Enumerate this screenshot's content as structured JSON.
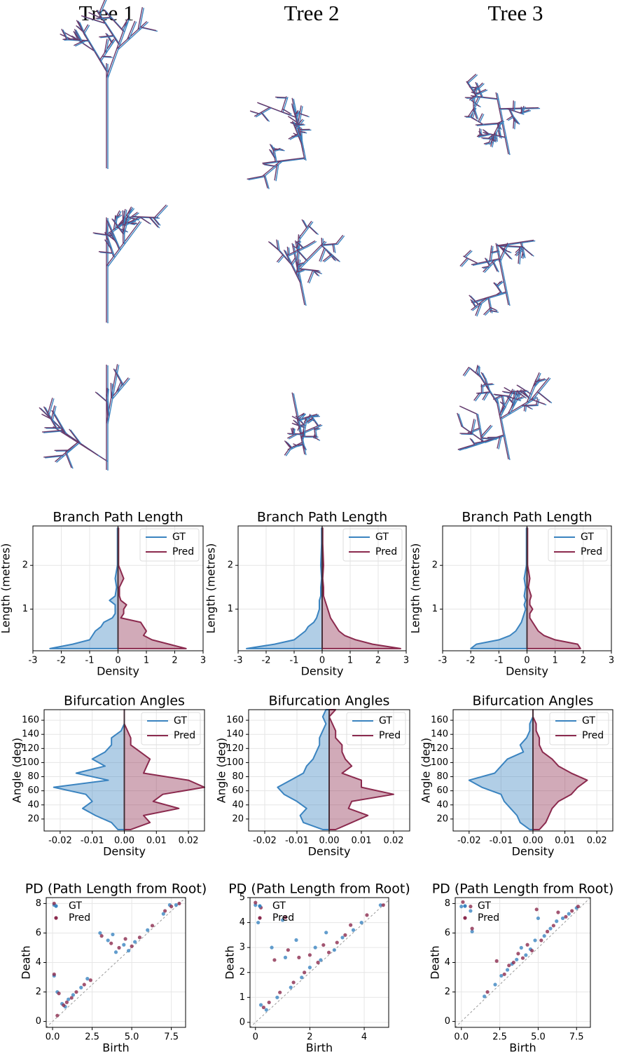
{
  "column_titles": [
    "Tree 1",
    "Tree 2",
    "Tree 3"
  ],
  "chart_data": [
    {
      "type": "density",
      "title": "Branch Path Length",
      "x_label": "Density",
      "y_label": "Length (metres)",
      "y": [
        0.1,
        0.2,
        0.3,
        0.4,
        0.5,
        0.6,
        0.7,
        0.8,
        0.9,
        1.0,
        1.1,
        1.2,
        1.3,
        1.5,
        1.7,
        2.0,
        2.5,
        2.85
      ],
      "series": [
        {
          "name": "GT",
          "color": "#3b84c0",
          "values": [
            -2.4,
            -1.6,
            -1.0,
            -0.9,
            -0.8,
            -0.6,
            -0.5,
            -0.2,
            -0.1,
            -0.1,
            -0.1,
            -0.3,
            -0.1,
            -0.05,
            -0.1,
            -0.02,
            -0.02,
            -0.02
          ]
        },
        {
          "name": "Pred",
          "color": "#8b2a4e",
          "values": [
            2.4,
            1.8,
            1.2,
            0.9,
            1.0,
            0.9,
            0.8,
            0.1,
            0.2,
            0.2,
            0.3,
            0.1,
            0.05,
            0.05,
            0.2,
            0.02,
            0.02,
            0.02
          ]
        }
      ],
      "xlim": [
        -3,
        3
      ],
      "xticks": [
        -3,
        -2,
        -1,
        0,
        1,
        2,
        3
      ],
      "ylim": [
        0.05,
        2.9
      ],
      "yticks": [
        1,
        2
      ],
      "grid": true,
      "legend": "upper right"
    },
    {
      "type": "density",
      "title": "Branch Path Length",
      "x_label": "Density",
      "y_label": "Length (metres)",
      "y": [
        0.1,
        0.2,
        0.3,
        0.4,
        0.5,
        0.6,
        0.7,
        0.8,
        0.9,
        1.0,
        1.1,
        1.2,
        1.3,
        1.5,
        1.7,
        2.0,
        2.5,
        2.85
      ],
      "series": [
        {
          "name": "GT",
          "color": "#3b84c0",
          "values": [
            -2.7,
            -1.7,
            -1.0,
            -0.8,
            -0.6,
            -0.5,
            -0.3,
            -0.2,
            -0.15,
            -0.1,
            -0.1,
            -0.1,
            -0.05,
            -0.05,
            -0.02,
            -0.05,
            -0.02,
            -0.02
          ]
        },
        {
          "name": "Pred",
          "color": "#8b2a4e",
          "values": [
            2.8,
            1.8,
            1.2,
            0.8,
            0.6,
            0.5,
            0.4,
            0.3,
            0.25,
            0.2,
            0.15,
            0.1,
            0.05,
            0.05,
            0.02,
            0.05,
            0.02,
            0.02
          ]
        }
      ],
      "xlim": [
        -3,
        3
      ],
      "xticks": [
        -3,
        -2,
        -1,
        0,
        1,
        2,
        3
      ],
      "ylim": [
        0.05,
        2.9
      ],
      "yticks": [
        1,
        2
      ],
      "grid": true,
      "legend": "upper right"
    },
    {
      "type": "density",
      "title": "Branch Path Length",
      "x_label": "Density",
      "y_label": "Length (metres)",
      "y": [
        0.1,
        0.2,
        0.3,
        0.4,
        0.5,
        0.6,
        0.7,
        0.8,
        0.9,
        1.0,
        1.1,
        1.2,
        1.3,
        1.5,
        1.7,
        2.0,
        2.5,
        2.85
      ],
      "series": [
        {
          "name": "GT",
          "color": "#3b84c0",
          "values": [
            -2.0,
            -1.8,
            -1.0,
            -0.6,
            -0.4,
            -0.3,
            -0.2,
            -0.15,
            -0.1,
            -0.05,
            -0.1,
            -0.05,
            -0.1,
            -0.05,
            -0.1,
            -0.02,
            -0.02,
            -0.02
          ]
        },
        {
          "name": "Pred",
          "color": "#8b2a4e",
          "values": [
            1.9,
            1.8,
            1.0,
            0.6,
            0.4,
            0.3,
            0.2,
            0.1,
            0.1,
            0.2,
            0.1,
            0.1,
            0.15,
            0.05,
            0.1,
            0.02,
            0.02,
            0.02
          ]
        }
      ],
      "xlim": [
        -3,
        3
      ],
      "xticks": [
        -3,
        -2,
        -1,
        0,
        1,
        2,
        3
      ],
      "ylim": [
        0.05,
        2.9
      ],
      "yticks": [
        1,
        2
      ],
      "grid": true,
      "legend": "upper right"
    },
    {
      "type": "density",
      "title": "Bifurcation Angles",
      "x_label": "Density",
      "y_label": "Angle (deg)",
      "y": [
        5,
        15,
        25,
        35,
        45,
        55,
        65,
        75,
        85,
        95,
        105,
        115,
        125,
        135,
        145,
        155,
        165,
        175
      ],
      "series": [
        {
          "name": "GT",
          "color": "#3b84c0",
          "values": [
            -0.002,
            -0.004,
            -0.009,
            -0.013,
            -0.01,
            -0.012,
            -0.022,
            -0.005,
            -0.015,
            -0.006,
            -0.01,
            -0.006,
            -0.004,
            -0.004,
            -0.001,
            0,
            0,
            0
          ]
        },
        {
          "name": "Pred",
          "color": "#8b2a4e",
          "values": [
            0.002,
            0.008,
            0.006,
            0.017,
            0.009,
            0.012,
            0.025,
            0.02,
            0.006,
            0.007,
            0.008,
            0.005,
            0.002,
            0.002,
            0.001,
            0,
            0,
            0
          ]
        }
      ],
      "xlim": [
        -0.025,
        0.025
      ],
      "xticks": [
        -0.02,
        -0.01,
        {
          "value": 0,
          "label": "0.00"
        },
        0.01,
        0.02
      ],
      "ylim": [
        3,
        175
      ],
      "yticks": [
        20,
        40,
        60,
        80,
        100,
        120,
        140,
        160
      ],
      "grid": true,
      "legend": "upper right"
    },
    {
      "type": "density",
      "title": "Bifurcation Angles",
      "x_label": "Density",
      "y_label": "Angle (deg)",
      "y": [
        5,
        15,
        25,
        35,
        45,
        55,
        65,
        75,
        85,
        95,
        105,
        115,
        125,
        135,
        145,
        155,
        165,
        175
      ],
      "series": [
        {
          "name": "GT",
          "color": "#3b84c0",
          "values": [
            -0.002,
            -0.008,
            -0.009,
            -0.007,
            -0.01,
            -0.014,
            -0.016,
            -0.012,
            -0.008,
            -0.007,
            -0.005,
            -0.004,
            -0.003,
            -0.003,
            -0.002,
            -0.001,
            -0.002,
            -0.001
          ]
        },
        {
          "name": "Pred",
          "color": "#8b2a4e",
          "values": [
            0.002,
            0.007,
            0.012,
            0.006,
            0.007,
            0.02,
            0.01,
            0.01,
            0.004,
            0.007,
            0.005,
            0.004,
            0.004,
            0.002,
            0.002,
            0.001,
            0,
            0.002
          ]
        }
      ],
      "xlim": [
        -0.025,
        0.025
      ],
      "xticks": [
        -0.02,
        -0.01,
        {
          "value": 0,
          "label": "0.00"
        },
        0.01,
        0.02
      ],
      "ylim": [
        3,
        175
      ],
      "yticks": [
        20,
        40,
        60,
        80,
        100,
        120,
        140,
        160
      ],
      "grid": true,
      "legend": "upper right"
    },
    {
      "type": "density",
      "title": "Bifurcation Angles",
      "x_label": "Density",
      "y_label": "Angle (deg)",
      "y": [
        5,
        15,
        25,
        35,
        45,
        55,
        65,
        75,
        85,
        95,
        105,
        115,
        125,
        135,
        145,
        155,
        165,
        175
      ],
      "series": [
        {
          "name": "GT",
          "color": "#3b84c0",
          "values": [
            -0.001,
            -0.004,
            -0.005,
            -0.007,
            -0.009,
            -0.01,
            -0.016,
            -0.02,
            -0.012,
            -0.01,
            -0.008,
            -0.003,
            -0.004,
            -0.002,
            -0.001,
            -0.001,
            0,
            0
          ]
        },
        {
          "name": "Pred",
          "color": "#8b2a4e",
          "values": [
            0.002,
            0.004,
            0.005,
            0.006,
            0.008,
            0.012,
            0.014,
            0.017,
            0.012,
            0.008,
            0.006,
            0.003,
            0.002,
            0.002,
            0.001,
            0.001,
            0,
            0
          ]
        }
      ],
      "xlim": [
        -0.025,
        0.025
      ],
      "xticks": [
        -0.02,
        -0.01,
        {
          "value": 0,
          "label": "0.00"
        },
        0.01,
        0.02
      ],
      "ylim": [
        3,
        175
      ],
      "yticks": [
        20,
        40,
        60,
        80,
        100,
        120,
        140,
        160
      ],
      "grid": true,
      "legend": "upper right"
    },
    {
      "type": "scatter",
      "title": "PD (Path Length from Root)",
      "x_label": "Birth",
      "y_label": "Death",
      "series": [
        {
          "name": "GT",
          "color": "#3b84c0",
          "x": [
            0.1,
            0.1,
            0.3,
            0.6,
            0.8,
            1.0,
            1.3,
            1.8,
            2.2,
            3.0,
            3.5,
            4.0,
            4.5,
            4.8,
            5.2,
            6.0,
            7.0,
            7.4,
            7.8,
            3.8
          ],
          "values": [
            7.9,
            3.1,
            2.0,
            1.2,
            1.0,
            1.5,
            1.8,
            2.3,
            2.9,
            6.0,
            5.5,
            4.7,
            5.2,
            4.8,
            5.4,
            6.2,
            7.3,
            7.9,
            7.9,
            5.9
          ]
        },
        {
          "name": "Pred",
          "color": "#8b2a4e",
          "x": [
            0.1,
            0.1,
            0.4,
            0.7,
            0.9,
            1.2,
            1.5,
            2.0,
            2.4,
            3.1,
            3.7,
            4.2,
            4.6,
            5.0,
            5.5,
            6.3,
            7.1,
            7.5,
            8.0,
            0.3
          ],
          "values": [
            8.0,
            3.2,
            1.9,
            1.1,
            1.3,
            1.6,
            2.0,
            2.5,
            2.8,
            5.8,
            5.3,
            5.0,
            5.6,
            5.1,
            5.7,
            6.5,
            7.5,
            7.8,
            8.0,
            0.4
          ]
        }
      ],
      "xlim": [
        -0.4,
        8.4
      ],
      "xticks": [
        {
          "value": 0,
          "label": "0.0"
        },
        2.5,
        {
          "value": 5,
          "label": "5.0"
        },
        7.5
      ],
      "ylim": [
        -0.4,
        8.4
      ],
      "yticks": [
        0,
        2,
        4,
        6,
        8
      ],
      "grid": true,
      "legend": "upper left"
    },
    {
      "type": "scatter",
      "title": "PD (Path Length from Root)",
      "x_label": "Birth",
      "y_label": "Death",
      "series": [
        {
          "name": "GT",
          "color": "#3b84c0",
          "x": [
            0,
            0.1,
            0.2,
            0.4,
            0.6,
            0.8,
            1.0,
            1.1,
            1.3,
            1.5,
            1.7,
            2.0,
            2.2,
            2.4,
            2.6,
            2.9,
            3.2,
            3.6,
            3.9,
            4.6
          ],
          "values": [
            4.7,
            4.0,
            0.7,
            0.5,
            3.0,
            1.0,
            4.1,
            2.6,
            1.4,
            3.3,
            1.8,
            2.2,
            3.0,
            2.5,
            3.6,
            2.9,
            3.4,
            3.7,
            4.0,
            4.7
          ]
        },
        {
          "name": "Pred",
          "color": "#8b2a4e",
          "x": [
            0,
            0.2,
            0.3,
            0.5,
            0.7,
            0.9,
            1.1,
            1.2,
            1.4,
            1.6,
            1.8,
            2.0,
            2.3,
            2.5,
            2.7,
            3.0,
            3.3,
            3.5,
            4.1,
            4.7
          ],
          "values": [
            4.8,
            4.6,
            0.6,
            0.8,
            2.5,
            1.2,
            4.2,
            2.9,
            1.6,
            2.6,
            2.0,
            2.7,
            2.4,
            3.1,
            2.8,
            3.2,
            3.5,
            3.9,
            4.3,
            4.7
          ]
        }
      ],
      "xlim": [
        -0.2,
        4.9
      ],
      "xticks": [
        0,
        2,
        4
      ],
      "ylim": [
        -0.2,
        5
      ],
      "yticks": [
        0,
        1,
        2,
        3,
        4,
        5
      ],
      "grid": true,
      "legend": "upper left"
    },
    {
      "type": "scatter",
      "title": "PD (Path Length from Root)",
      "x_label": "Birth",
      "y_label": "Death",
      "series": [
        {
          "name": "GT",
          "color": "#3b84c0",
          "x": [
            0,
            0.6,
            0.7,
            1.5,
            2.2,
            2.6,
            3.0,
            3.3,
            3.6,
            3.9,
            4.2,
            4.5,
            4.8,
            5.0,
            5.4,
            5.8,
            6.2,
            6.6,
            7.0,
            7.5
          ],
          "values": [
            7.8,
            7.5,
            6.1,
            1.7,
            2.5,
            3.1,
            3.5,
            3.9,
            4.2,
            5.0,
            4.5,
            4.9,
            5.5,
            7.0,
            5.8,
            6.3,
            6.8,
            7.0,
            7.3,
            7.7
          ]
        },
        {
          "name": "Pred",
          "color": "#8b2a4e",
          "x": [
            0.1,
            0.6,
            0.7,
            1.7,
            2.3,
            2.8,
            3.1,
            3.4,
            3.7,
            4.0,
            4.3,
            4.6,
            4.9,
            5.2,
            5.6,
            6.0,
            6.3,
            6.8,
            7.2,
            7.6
          ],
          "values": [
            8.1,
            7.8,
            6.3,
            2.0,
            4.1,
            3.2,
            3.8,
            4.0,
            4.6,
            4.3,
            5.2,
            4.8,
            7.6,
            5.5,
            6.1,
            6.5,
            7.4,
            7.1,
            7.5,
            7.8
          ]
        }
      ],
      "xlim": [
        -0.4,
        8.4
      ],
      "xticks": [
        {
          "value": 0,
          "label": "0.0"
        },
        2.5,
        {
          "value": 5,
          "label": "5.0"
        },
        7.5
      ],
      "ylim": [
        -0.4,
        8.4
      ],
      "yticks": [
        0,
        2,
        4,
        6,
        8
      ],
      "grid": true,
      "legend": "upper left"
    }
  ]
}
